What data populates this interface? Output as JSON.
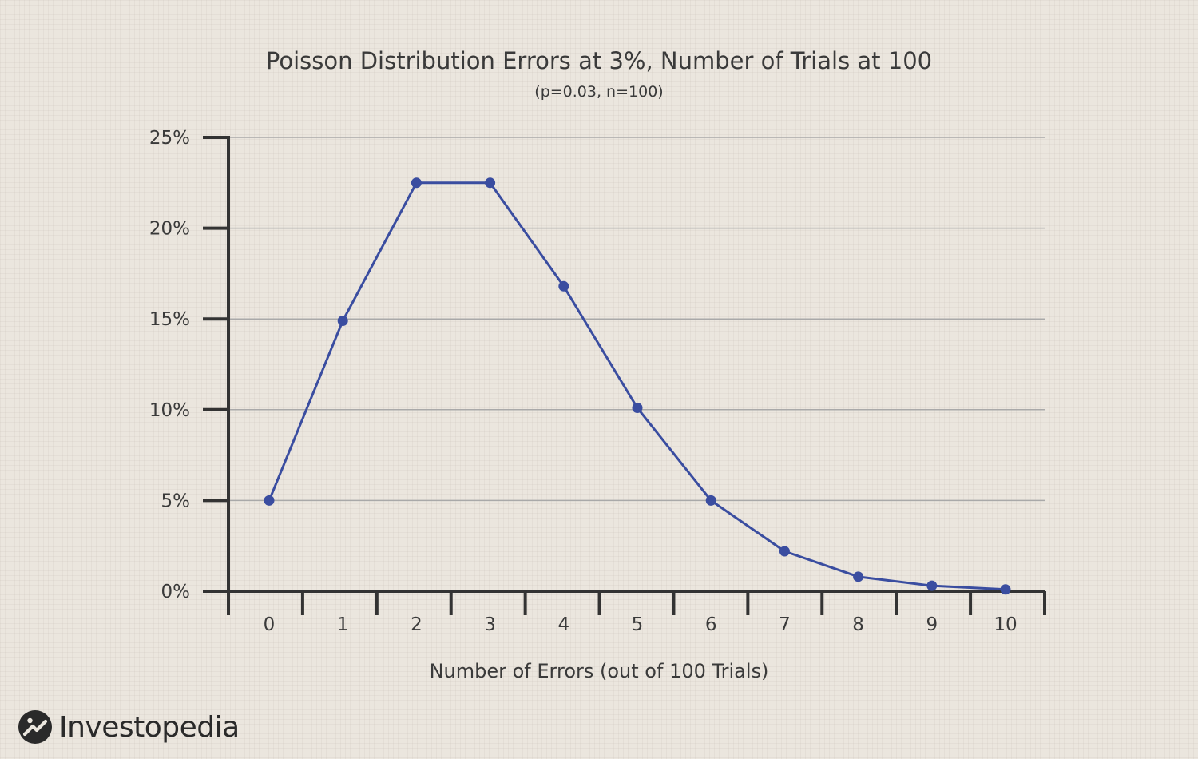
{
  "chart_data": {
    "type": "line",
    "title": "Poisson Distribution Errors at 3%, Number of Trials at 100",
    "subtitle": "(p=0.03, n=100)",
    "xlabel": "Number of Errors (out of 100 Trials)",
    "ylabel": "",
    "x": [
      0,
      1,
      2,
      3,
      4,
      5,
      6,
      7,
      8,
      9,
      10
    ],
    "x_tick_labels": [
      "0",
      "1",
      "2",
      "3",
      "4",
      "5",
      "6",
      "7",
      "8",
      "9",
      "10"
    ],
    "y_tick_values": [
      0,
      5,
      10,
      15,
      20,
      25
    ],
    "y_tick_labels": [
      "0%",
      "5%",
      "10%",
      "15%",
      "20%",
      "25%"
    ],
    "ylim": [
      0,
      25
    ],
    "grid": true,
    "series": [
      {
        "values": [
          5.0,
          14.9,
          22.5,
          22.5,
          16.8,
          10.1,
          5.0,
          2.2,
          0.8,
          0.3,
          0.1
        ],
        "color": "#3a4da0"
      }
    ]
  },
  "brand": {
    "name": "Investopedia",
    "icon": "investopedia-logo-icon"
  }
}
